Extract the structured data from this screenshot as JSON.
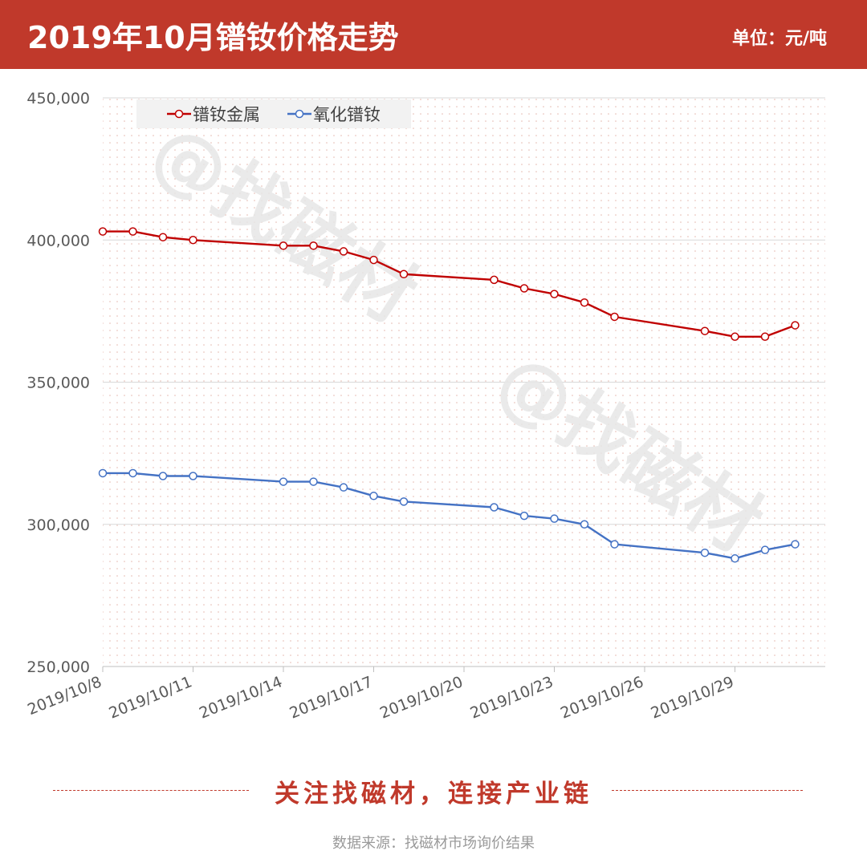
{
  "header": {
    "title": "2019年10月镨钕价格走势",
    "unit": "单位：元/吨"
  },
  "colors": {
    "header_bg": "#c0392b",
    "series_metal": "#c00000",
    "series_oxide": "#4472c4"
  },
  "chart_data": {
    "type": "line",
    "title": "2019年10月镨钕价格走势",
    "ylabel": "单位：元/吨",
    "ylim": [
      250000,
      450000
    ],
    "y_ticks": [
      "450,000",
      "400,000",
      "350,000",
      "300,000",
      "250,000"
    ],
    "y_tick_values": [
      450000,
      400000,
      350000,
      300000,
      250000
    ],
    "x_axis": {
      "type": "date",
      "min": "2019/10/8",
      "max": "2019/11/1",
      "tick_labels": [
        "2019/10/8",
        "2019/10/11",
        "2019/10/14",
        "2019/10/17",
        "2019/10/20",
        "2019/10/23",
        "2019/10/26",
        "2019/10/29"
      ]
    },
    "legend_position": "top-left",
    "grid": true,
    "series": [
      {
        "name": "镨钕金属",
        "color": "#c00000",
        "points": [
          {
            "x": "2019/10/8",
            "y": 403000
          },
          {
            "x": "2019/10/9",
            "y": 403000
          },
          {
            "x": "2019/10/10",
            "y": 401000
          },
          {
            "x": "2019/10/11",
            "y": 400000
          },
          {
            "x": "2019/10/14",
            "y": 398000
          },
          {
            "x": "2019/10/15",
            "y": 398000
          },
          {
            "x": "2019/10/16",
            "y": 396000
          },
          {
            "x": "2019/10/17",
            "y": 393000
          },
          {
            "x": "2019/10/18",
            "y": 388000
          },
          {
            "x": "2019/10/21",
            "y": 386000
          },
          {
            "x": "2019/10/22",
            "y": 383000
          },
          {
            "x": "2019/10/23",
            "y": 381000
          },
          {
            "x": "2019/10/24",
            "y": 378000
          },
          {
            "x": "2019/10/25",
            "y": 373000
          },
          {
            "x": "2019/10/28",
            "y": 368000
          },
          {
            "x": "2019/10/29",
            "y": 366000
          },
          {
            "x": "2019/10/30",
            "y": 366000
          },
          {
            "x": "2019/10/31",
            "y": 370000
          }
        ]
      },
      {
        "name": "氧化镨钕",
        "color": "#4472c4",
        "points": [
          {
            "x": "2019/10/8",
            "y": 318000
          },
          {
            "x": "2019/10/9",
            "y": 318000
          },
          {
            "x": "2019/10/10",
            "y": 317000
          },
          {
            "x": "2019/10/11",
            "y": 317000
          },
          {
            "x": "2019/10/14",
            "y": 315000
          },
          {
            "x": "2019/10/15",
            "y": 315000
          },
          {
            "x": "2019/10/16",
            "y": 313000
          },
          {
            "x": "2019/10/17",
            "y": 310000
          },
          {
            "x": "2019/10/18",
            "y": 308000
          },
          {
            "x": "2019/10/21",
            "y": 306000
          },
          {
            "x": "2019/10/22",
            "y": 303000
          },
          {
            "x": "2019/10/23",
            "y": 302000
          },
          {
            "x": "2019/10/24",
            "y": 300000
          },
          {
            "x": "2019/10/25",
            "y": 293000
          },
          {
            "x": "2019/10/28",
            "y": 290000
          },
          {
            "x": "2019/10/29",
            "y": 288000
          },
          {
            "x": "2019/10/30",
            "y": 291000
          },
          {
            "x": "2019/10/31",
            "y": 293000
          }
        ]
      }
    ],
    "watermark": "@找磁材"
  },
  "footer": {
    "slogan": "关注找磁材，连接产业链",
    "source": "数据来源：找磁材市场询价结果"
  }
}
